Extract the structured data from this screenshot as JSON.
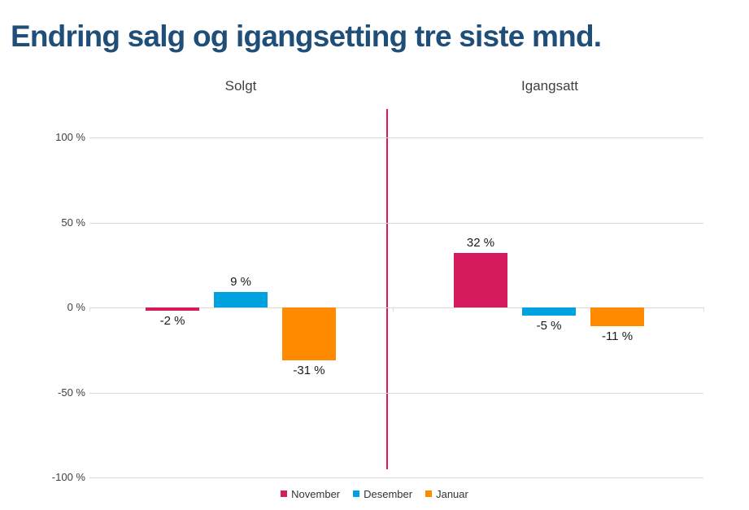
{
  "title": "Endring salg og igangsetting tre siste mnd.",
  "colors": {
    "title": "#1F4E79",
    "november": "#D51A5D",
    "desember": "#00A1DF",
    "januar": "#FF8A00",
    "divider": "#E3155E",
    "gridline": "#D9D9D9",
    "axis_text": "#404040",
    "value_text": "#1A1A1A"
  },
  "chart_data": {
    "type": "bar",
    "title": "Endring salg og igangsetting tre siste mnd.",
    "groups": [
      "Solgt",
      "Igangsatt"
    ],
    "series": [
      {
        "name": "November",
        "color": "#D51A5D",
        "values": [
          -2,
          32
        ]
      },
      {
        "name": "Desember",
        "color": "#00A1DF",
        "values": [
          9,
          -5
        ]
      },
      {
        "name": "Januar",
        "color": "#FF8A00",
        "values": [
          -31,
          -11
        ]
      }
    ],
    "value_labels": [
      [
        "-2 %",
        "32 %"
      ],
      [
        "9 %",
        "-5 %"
      ],
      [
        "-31 %",
        "-11 %"
      ]
    ],
    "value_label_format": "{v} %",
    "yticks": [
      100,
      50,
      0,
      -50,
      -100
    ],
    "ytick_labels": [
      "100 %",
      "50 %",
      "0 %",
      "-50 %",
      "-100 %"
    ],
    "ylim": [
      -100,
      100
    ],
    "grid": true,
    "group_divider": true,
    "legend_position": "bottom",
    "legend": [
      "November",
      "Desember",
      "Januar"
    ]
  }
}
